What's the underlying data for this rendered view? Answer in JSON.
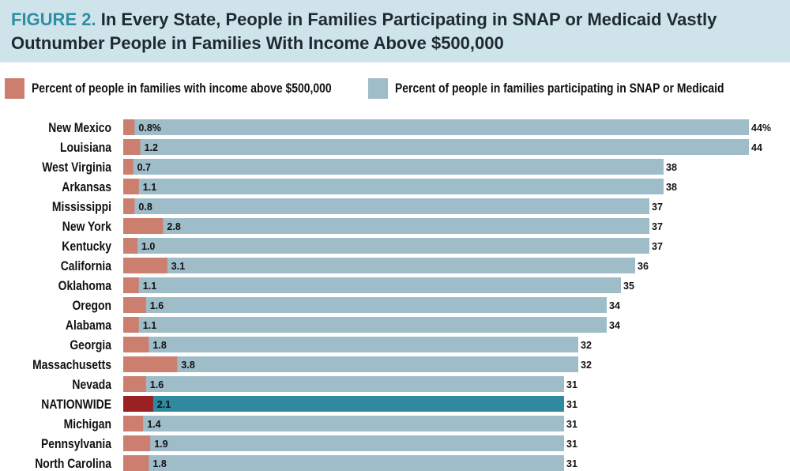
{
  "header": {
    "figure_label": "FIGURE 2.",
    "title": "In Every State, People in Families Participating in SNAP or Medicaid Vastly Outnumber People in Families With Income Above $500,000"
  },
  "colors": {
    "title_band": "#cfe3ea",
    "figure_label": "#2e8fa3",
    "income_bar": "#cc7f6f",
    "snap_bar": "#9fbdc8",
    "nationwide_income_bar": "#9a2023",
    "nationwide_snap_bar": "#2f8aa0",
    "nationwide_income_label": "#ffffff"
  },
  "legend": {
    "income": "Percent of people in families with income above $500,000",
    "snap": "Percent of people in families participating in SNAP or Medicaid"
  },
  "chart_data": {
    "type": "bar",
    "orientation": "horizontal",
    "title": "In Every State, People in Families Participating in SNAP or Medicaid Vastly Outnumber People in Families With Income Above $500,000",
    "categories": [
      "New Mexico",
      "Louisiana",
      "West Virginia",
      "Arkansas",
      "Mississippi",
      "New York",
      "Kentucky",
      "California",
      "Oklahoma",
      "Oregon",
      "Alabama",
      "Georgia",
      "Massachusetts",
      "Nevada",
      "NATIONWIDE",
      "Michigan",
      "Pennsylvania",
      "North Carolina"
    ],
    "highlight_category": "NATIONWIDE",
    "series": [
      {
        "name": "Percent of people in families participating in SNAP or Medicaid",
        "values": [
          44,
          44,
          38,
          38,
          37,
          37,
          37,
          36,
          35,
          34,
          34,
          32,
          32,
          31,
          31,
          31,
          31,
          31
        ],
        "labels": [
          "44%",
          "44",
          "38",
          "38",
          "37",
          "37",
          "37",
          "36",
          "35",
          "34",
          "34",
          "32",
          "32",
          "31",
          "31",
          "31",
          "31",
          "31"
        ]
      },
      {
        "name": "Percent of people in families with income above $500,000",
        "values": [
          0.8,
          1.2,
          0.7,
          1.1,
          0.8,
          2.8,
          1.0,
          3.1,
          1.1,
          1.6,
          1.1,
          1.8,
          3.8,
          1.6,
          2.1,
          1.4,
          1.9,
          1.8
        ],
        "labels": [
          "0.8%",
          "1.2",
          "0.7",
          "1.1",
          "0.8",
          "2.8",
          "1.0",
          "3.1",
          "1.1",
          "1.6",
          "1.1",
          "1.8",
          "3.8",
          "1.6",
          "2.1",
          "1.4",
          "1.9",
          "1.8"
        ]
      }
    ],
    "xlim": [
      0,
      44
    ]
  }
}
